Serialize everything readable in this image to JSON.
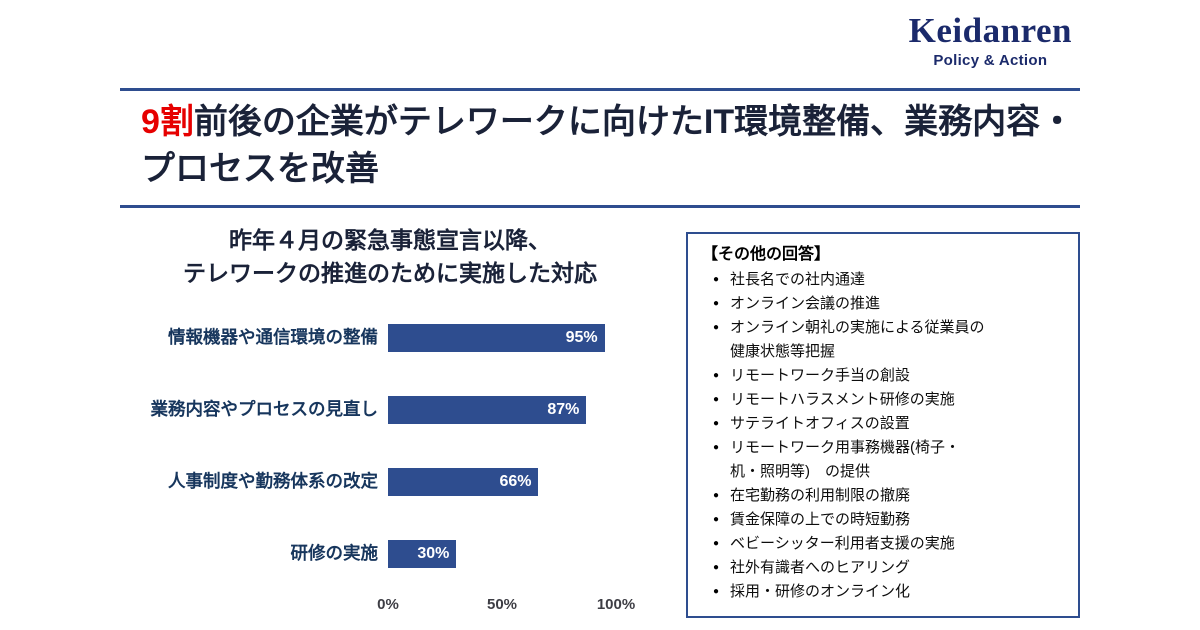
{
  "colors": {
    "logo_navy": "#1b2a6b",
    "accent_red": "#e60000",
    "bar_blue": "#2e4d8f",
    "divider_blue": "#2e4d8f"
  },
  "logo": {
    "name": "Keidanren",
    "tagline": "Policy & Action"
  },
  "headline": {
    "highlight": "9割",
    "rest": "前後の企業がテレワークに向けたIT環境整備、業務内容・プロセスを改善"
  },
  "chart_data": {
    "type": "bar",
    "orientation": "horizontal",
    "title": "昨年４月の緊急事態宣言以降、テレワークの推進のために実施した対応",
    "title_lines": [
      "昨年４月の緊急事態宣言以降、",
      "テレワークの推進のために実施した対応"
    ],
    "categories": [
      "情報機器や通信環境の整備",
      "業務内容やプロセスの見直し",
      "人事制度や勤務体系の改定",
      "研修の実施"
    ],
    "values": [
      95,
      87,
      66,
      30
    ],
    "value_labels": [
      "95%",
      "87%",
      "66%",
      "30%"
    ],
    "xlim": [
      0,
      100
    ],
    "x_tick_labels": [
      "0%",
      "50%",
      "100%"
    ],
    "grid": false,
    "legend": false,
    "bar_color": "#2e4d8f"
  },
  "other_answers": {
    "title": "【その他の回答】",
    "items": [
      "社長名での社内通達",
      "オンライン会議の推進",
      "オンライン朝礼の実施による従業員の健康状態等把握",
      "リモートワーク手当の創設",
      "リモートハラスメント研修の実施",
      "サテライトオフィスの設置",
      "リモートワーク用事務機器(椅子・机・照明等)　の提供",
      "在宅勤務の利用制限の撤廃",
      "賃金保障の上での時短勤務",
      "ベビーシッター利用者支援の実施",
      "社外有識者へのヒアリング",
      "採用・研修のオンライン化"
    ]
  }
}
